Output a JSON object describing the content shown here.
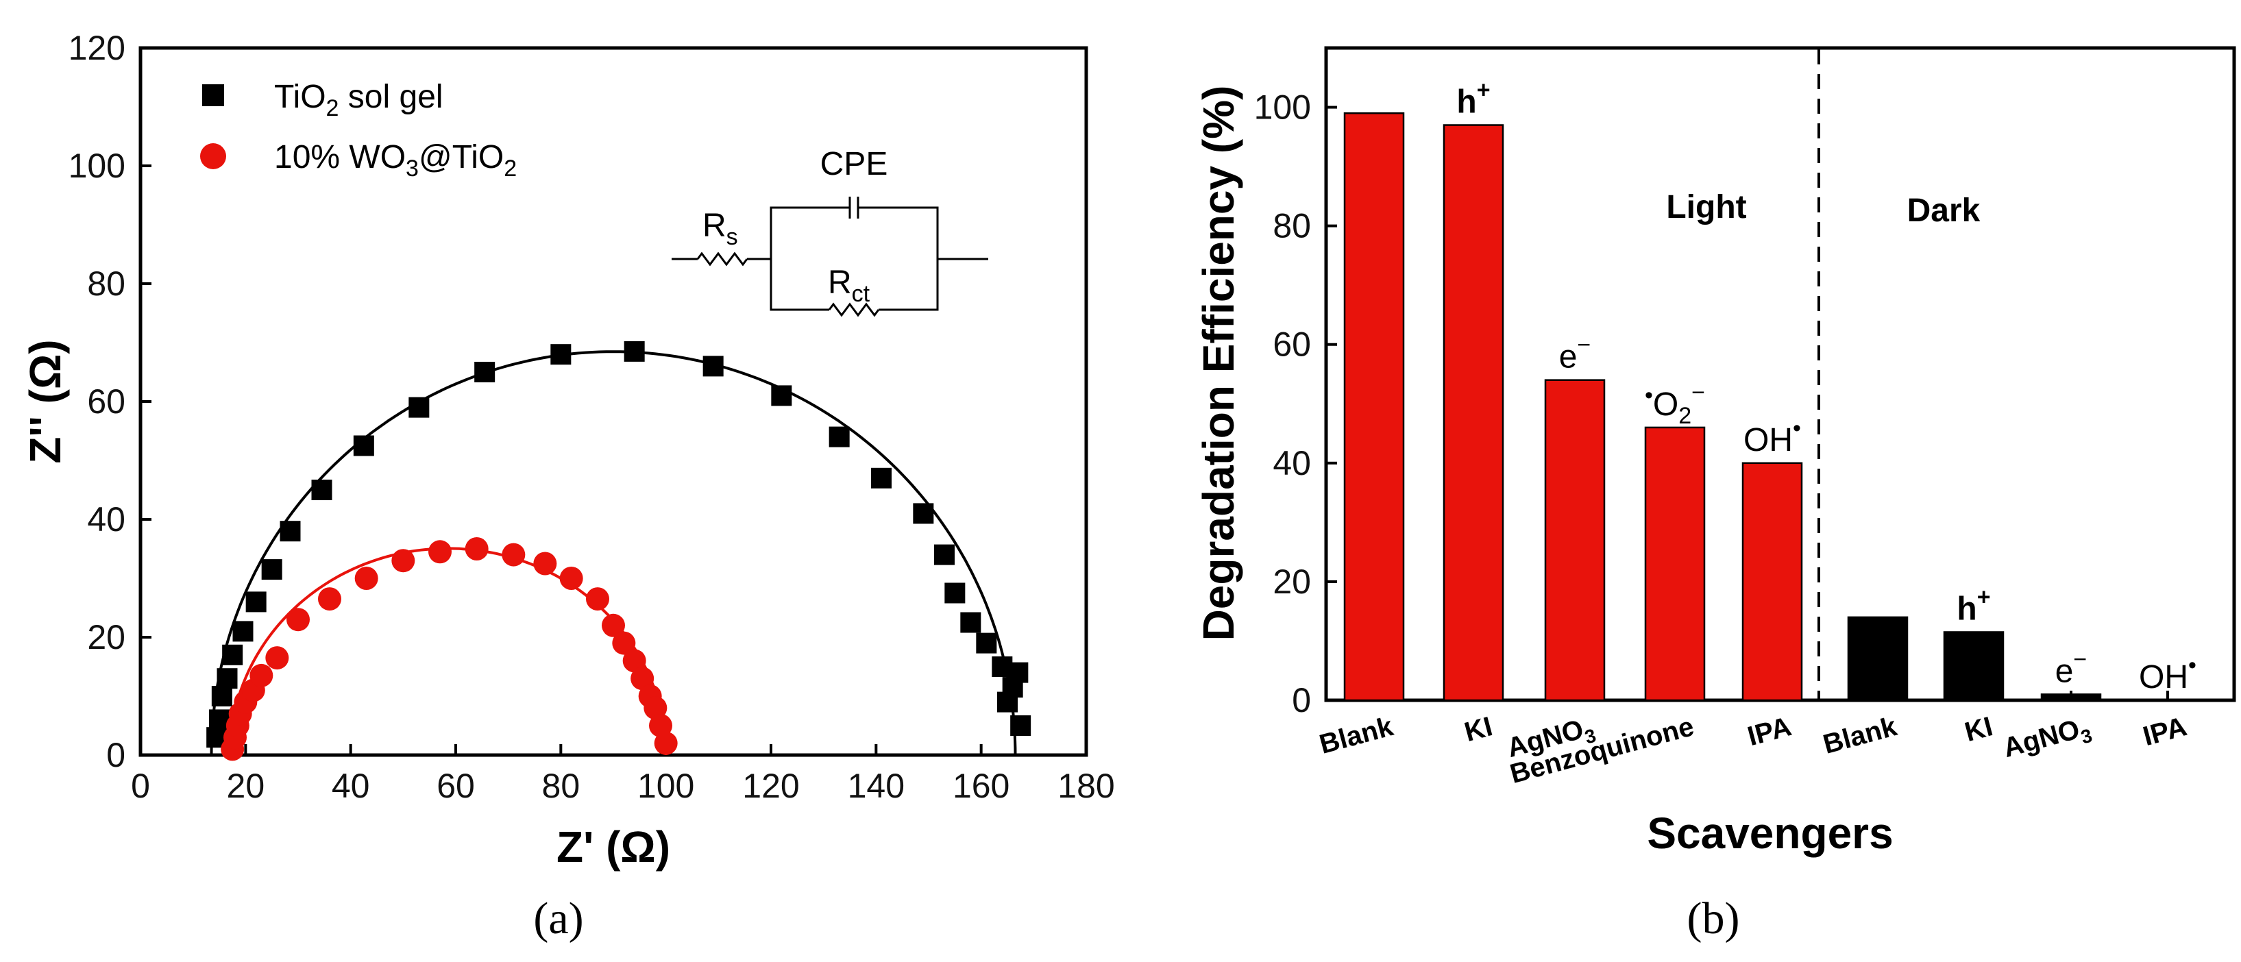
{
  "chart_data": [
    {
      "type": "scatter",
      "panel_label": "(a)",
      "xlabel": "Z' (Ω)",
      "ylabel": "Z'' (Ω)",
      "xlim": [
        0,
        180
      ],
      "ylim": [
        0,
        120
      ],
      "xticks": [
        "0",
        "20",
        "40",
        "60",
        "80",
        "100",
        "120",
        "140",
        "160",
        "180"
      ],
      "yticks": [
        "0",
        "20",
        "40",
        "60",
        "80",
        "100",
        "120"
      ],
      "series": [
        {
          "name": "TiO2 sol gel",
          "legend_main": "TiO",
          "legend_sub": "2",
          "legend_rest": " sol gel",
          "marker": "square",
          "color": "#000000",
          "x": [
            14.5,
            15.0,
            15.5,
            16.5,
            17.5,
            19.5,
            22,
            25,
            28.5,
            34.5,
            42.5,
            53,
            65.5,
            80,
            94,
            109,
            122,
            133,
            141,
            149,
            153,
            155,
            158,
            161,
            164,
            165,
            166,
            167,
            167.5
          ],
          "y": [
            3,
            6,
            10,
            13,
            17,
            21,
            26,
            31.5,
            38,
            45,
            52.5,
            59,
            65,
            68,
            68.5,
            66,
            61,
            54,
            47,
            41,
            34,
            27.5,
            22.5,
            19,
            15,
            9,
            11.5,
            14,
            5
          ],
          "fit": {
            "x0": 90,
            "r": 76.5,
            "ky": 0.895
          }
        },
        {
          "name": "10% WO3@TiO2",
          "legend_main": "10% WO",
          "legend_sub": "3",
          "legend_rest": "@TiO",
          "legend_sub2": "2",
          "marker": "circle",
          "color": "#e8130c",
          "x": [
            17.5,
            18,
            18.5,
            19,
            20,
            21.5,
            23,
            26,
            30,
            36,
            43,
            50,
            57,
            64,
            71,
            77,
            82,
            87,
            90,
            92,
            94,
            95.5,
            97,
            98,
            99,
            100
          ],
          "y": [
            1,
            3,
            5,
            7,
            9,
            11,
            13.5,
            16.5,
            23,
            26.5,
            30,
            33,
            34.5,
            35,
            34,
            32.5,
            30,
            26.5,
            22,
            19,
            16,
            13,
            10,
            8,
            5,
            2
          ],
          "fit": {
            "x0": 58.5,
            "r": 41.5,
            "ky": 0.845
          }
        }
      ],
      "circuit": {
        "rs_main": "R",
        "rs_sub": "s",
        "cpe_label": "CPE",
        "rct_main": "R",
        "rct_sub": "ct"
      }
    },
    {
      "type": "bar",
      "panel_label": "(b)",
      "xlabel": "Scavengers",
      "ylabel": "Degradation Efficiency (%)",
      "ylim": [
        0,
        110
      ],
      "yticks": [
        "0",
        "20",
        "40",
        "60",
        "80",
        "100"
      ],
      "categories": [
        "Blank",
        "KI",
        "AgNO3",
        "Benzoquinone",
        "IPA",
        "Blank",
        "KI",
        "AgNO3",
        "IPA"
      ],
      "category_labels": [
        {
          "main": "Blank",
          "sub": ""
        },
        {
          "main": "KI",
          "sub": ""
        },
        {
          "main": "AgNO",
          "sub": "3"
        },
        {
          "main": "Benzoquinone",
          "sub": ""
        },
        {
          "main": "IPA",
          "sub": ""
        },
        {
          "main": "Blank",
          "sub": ""
        },
        {
          "main": "KI",
          "sub": ""
        },
        {
          "main": "AgNO",
          "sub": "3"
        },
        {
          "main": "IPA",
          "sub": ""
        }
      ],
      "values": [
        99,
        97,
        54,
        46,
        40,
        14,
        11.5,
        1,
        0
      ],
      "colors": [
        "#e8130c",
        "#e8130c",
        "#e8130c",
        "#e8130c",
        "#e8130c",
        "#000000",
        "#000000",
        "#000000",
        "#000000"
      ],
      "regions": [
        {
          "name": "Light",
          "label": "Light"
        },
        {
          "name": "Dark",
          "label": "Dark"
        }
      ],
      "bar_annotations": [
        {
          "bar": 1,
          "main": "h",
          "sup": "+",
          "bold": true
        },
        {
          "bar": 2,
          "main": "e",
          "sup": "−",
          "bold": false
        },
        {
          "bar": 3,
          "pre": "•",
          "main": "O",
          "sub": "2",
          "sup": "−",
          "bold": false
        },
        {
          "bar": 4,
          "main": "OH",
          "sup": "•",
          "bold": false
        },
        {
          "bar": 6,
          "main": "h",
          "sup": "+",
          "bold": true
        },
        {
          "bar": 7,
          "main": "e",
          "sup": "−",
          "bold": false
        },
        {
          "bar": 8,
          "main": "OH",
          "sup": "•",
          "bold": false
        }
      ]
    }
  ]
}
